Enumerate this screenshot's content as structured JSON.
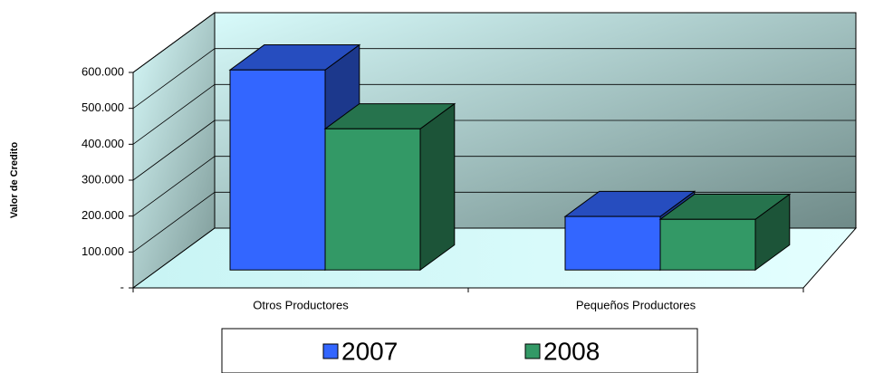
{
  "chart_data": {
    "type": "bar3d",
    "y_label": "Valor de Credito",
    "categories": [
      "Otros Productores",
      "Pequeños Productores"
    ],
    "series": [
      {
        "name": "2007",
        "color": "#3366ff",
        "values": [
          557000,
          149000
        ]
      },
      {
        "name": "2008",
        "color": "#339966",
        "values": [
          393000,
          141000
        ]
      }
    ],
    "ylim": [
      0,
      600000
    ],
    "yticks": [
      {
        "value": 0,
        "label": "-"
      },
      {
        "value": 100000,
        "label": "100.000"
      },
      {
        "value": 200000,
        "label": "200.000"
      },
      {
        "value": 300000,
        "label": "300.000"
      },
      {
        "value": 400000,
        "label": "400.000"
      },
      {
        "value": 500000,
        "label": "500.000"
      },
      {
        "value": 600000,
        "label": "600.000"
      }
    ],
    "grid": true,
    "legend": "bottom"
  }
}
